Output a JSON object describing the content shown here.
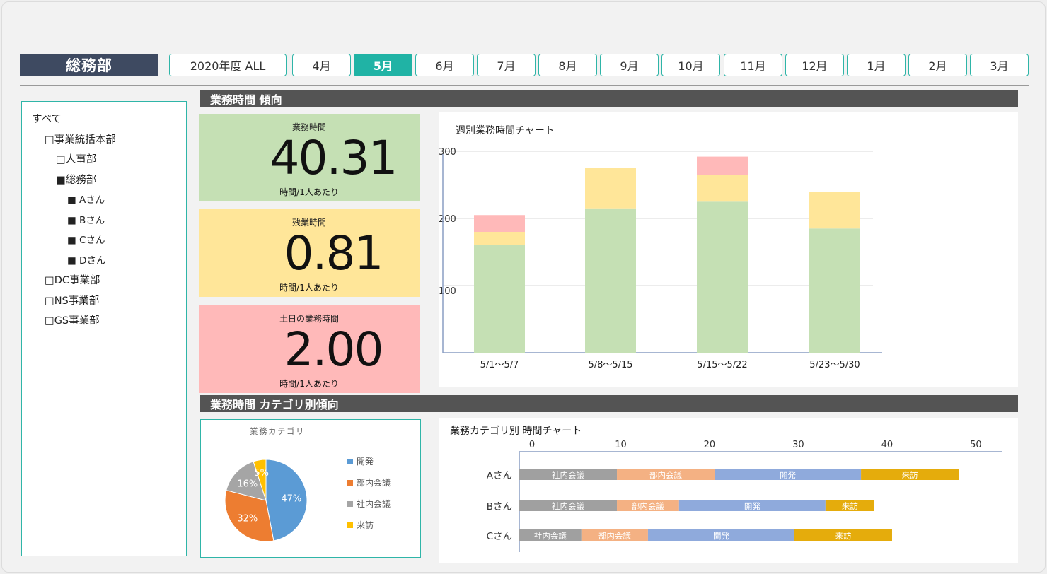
{
  "header": {
    "department": "総務部",
    "tabs": [
      "2020年度 ALL",
      "4月",
      "5月",
      "6月",
      "7月",
      "8月",
      "9月",
      "10月",
      "11月",
      "12月",
      "1月",
      "2月",
      "3月"
    ],
    "active_tab": "5月"
  },
  "sidebar": {
    "items": [
      {
        "label": "すべて",
        "level": 0
      },
      {
        "label": "□事業統括本部",
        "level": 1
      },
      {
        "label": "□人事部",
        "level": 2
      },
      {
        "label": "■総務部",
        "level": 2
      },
      {
        "label": "■ Aさん",
        "level": 3
      },
      {
        "label": "■ Bさん",
        "level": 3
      },
      {
        "label": "■ Cさん",
        "level": 3
      },
      {
        "label": "■ Dさん",
        "level": 3
      },
      {
        "label": "□DC事業部",
        "level": 1
      },
      {
        "label": "□NS事業部",
        "level": 1
      },
      {
        "label": "□GS事業部",
        "level": 1
      }
    ]
  },
  "section1": {
    "title": "業務時間 傾向"
  },
  "section2": {
    "title": "業務時間 カテゴリ別傾向"
  },
  "kpis": [
    {
      "label": "業務時間",
      "value": "40.31",
      "unit": "時間/1人あたり",
      "color": "#c5e0b4"
    },
    {
      "label": "残業時間",
      "value": "0.81",
      "unit": "時間/1人あたり",
      "color": "#ffe699"
    },
    {
      "label": "土日の業務時間",
      "value": "2.00",
      "unit": "時間/1人あたり",
      "color": "#ffb9b9"
    }
  ],
  "chart_data": [
    {
      "type": "bar",
      "title": "週別業務時間チャート",
      "categories": [
        "5/1〜5/7",
        "5/8〜5/15",
        "5/15〜5/22",
        "5/23〜5/30"
      ],
      "series": [
        {
          "values": [
            160,
            215,
            225,
            185
          ],
          "color": "#c5e0b4"
        },
        {
          "values": [
            20,
            60,
            40,
            55
          ],
          "color": "#ffe699"
        },
        {
          "values": [
            25,
            0,
            27,
            0
          ],
          "color": "#ffb9b9"
        }
      ],
      "yticks": [
        100,
        200,
        300
      ],
      "ylim": [
        0,
        320
      ],
      "grid": true
    },
    {
      "type": "pie",
      "title": "業務カテゴリ",
      "slices": [
        {
          "label": "開発",
          "value": 47,
          "color": "#5b9bd5"
        },
        {
          "label": "部内会議",
          "value": 32,
          "color": "#ed7d31"
        },
        {
          "label": "社内会議",
          "value": 16,
          "color": "#a5a5a5"
        },
        {
          "label": "来訪",
          "value": 5,
          "color": "#ffc000"
        }
      ],
      "legend": "right"
    },
    {
      "type": "bar",
      "orientation": "horizontal",
      "title": "業務カテゴリ別 時間チャート",
      "categories": [
        "Aさん",
        "Bさん",
        "Cさん"
      ],
      "series": [
        {
          "name": "社内会議",
          "values": [
            11,
            11,
            7
          ],
          "color": "#a0a0a0"
        },
        {
          "name": "部内会議",
          "values": [
            11,
            7,
            7.5
          ],
          "color": "#f4b183"
        },
        {
          "name": "開発",
          "values": [
            16.5,
            16.5,
            16.5
          ],
          "color": "#8faadc"
        },
        {
          "name": "来訪",
          "values": [
            11,
            5.5,
            11
          ],
          "color": "#e5ac0c"
        }
      ],
      "xticks": [
        0,
        10,
        20,
        30,
        40,
        50
      ],
      "xlim": [
        0,
        53
      ]
    }
  ]
}
